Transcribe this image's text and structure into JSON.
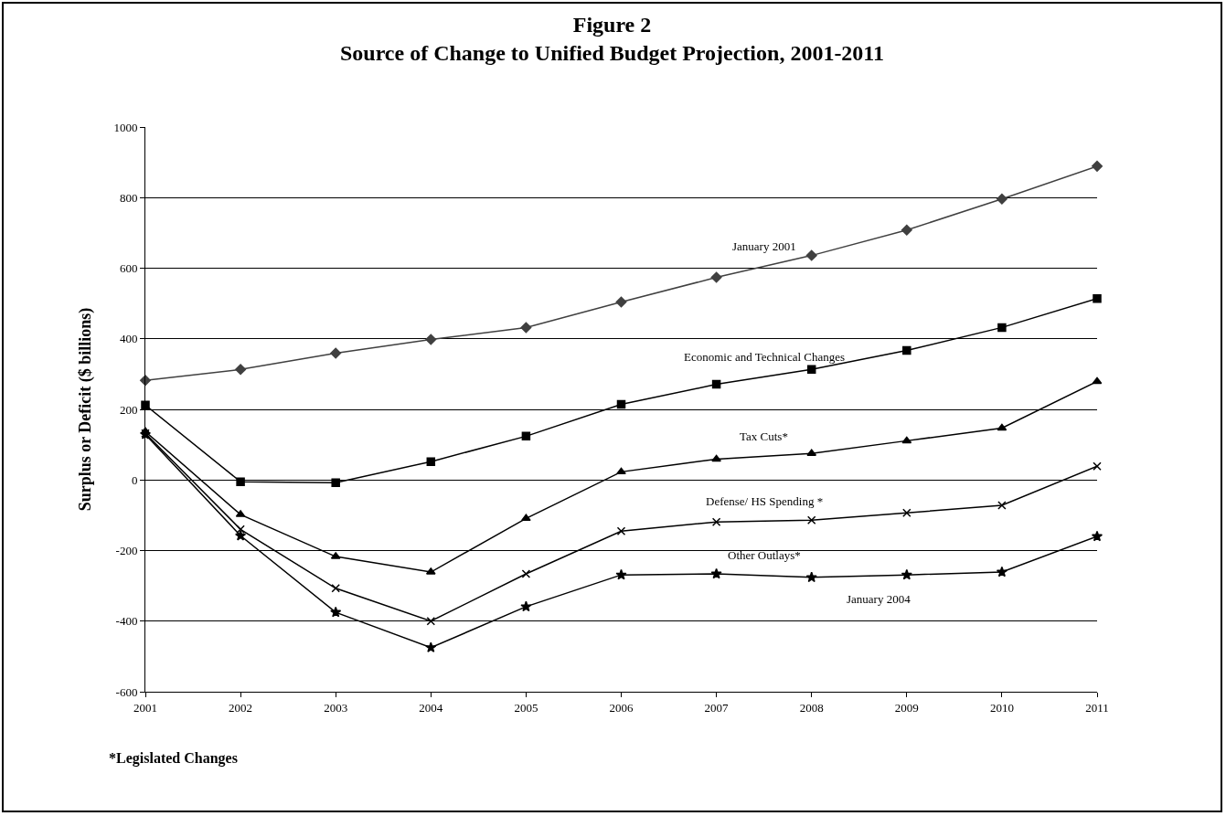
{
  "chart_data": {
    "type": "line",
    "title": "Figure 2",
    "subtitle": "Source of Change to Unified Budget Projection, 2001-2011",
    "ylabel": "Surplus or Deficit ($ billions)",
    "x": [
      2001,
      2002,
      2003,
      2004,
      2005,
      2006,
      2007,
      2008,
      2009,
      2010,
      2011
    ],
    "xlim": [
      2001,
      2011
    ],
    "xticks": [
      2001,
      2002,
      2003,
      2004,
      2005,
      2006,
      2007,
      2008,
      2009,
      2010,
      2011
    ],
    "ylim": [
      -600,
      1000
    ],
    "yticks": [
      -600,
      -400,
      -200,
      0,
      200,
      400,
      600,
      800,
      1000
    ],
    "grid": "y",
    "legend": false,
    "line_style": "solid",
    "series": [
      {
        "name": "January 2001",
        "color": "#404040",
        "marker": "diamond",
        "values": [
          282,
          313,
          359,
          398,
          432,
          504,
          574,
          636,
          708,
          796,
          889
        ]
      },
      {
        "name": "Economic and Technical Changes",
        "color": "#000000",
        "marker": "square",
        "values": [
          212,
          -5,
          -8,
          52,
          124,
          214,
          271,
          313,
          367,
          432,
          514
        ]
      },
      {
        "name": "Tax Cuts*",
        "color": "#000000",
        "marker": "triangle",
        "values": [
          137,
          -98,
          -217,
          -261,
          -109,
          23,
          59,
          75,
          111,
          147,
          279
        ]
      },
      {
        "name": "Defense/ HS Spending *",
        "color": "#000000",
        "marker": "cross",
        "values": [
          132,
          -140,
          -307,
          -400,
          -266,
          -145,
          -119,
          -114,
          -93,
          -72,
          39
        ]
      },
      {
        "name": "Other Outlays*",
        "color": "#000000",
        "marker": "star",
        "values": [
          129,
          -158,
          -375,
          -475,
          -359,
          -269,
          -266,
          -276,
          -269,
          -261,
          -160
        ]
      }
    ],
    "annotations": [
      "January 2004",
      "*Legislated Changes"
    ]
  }
}
